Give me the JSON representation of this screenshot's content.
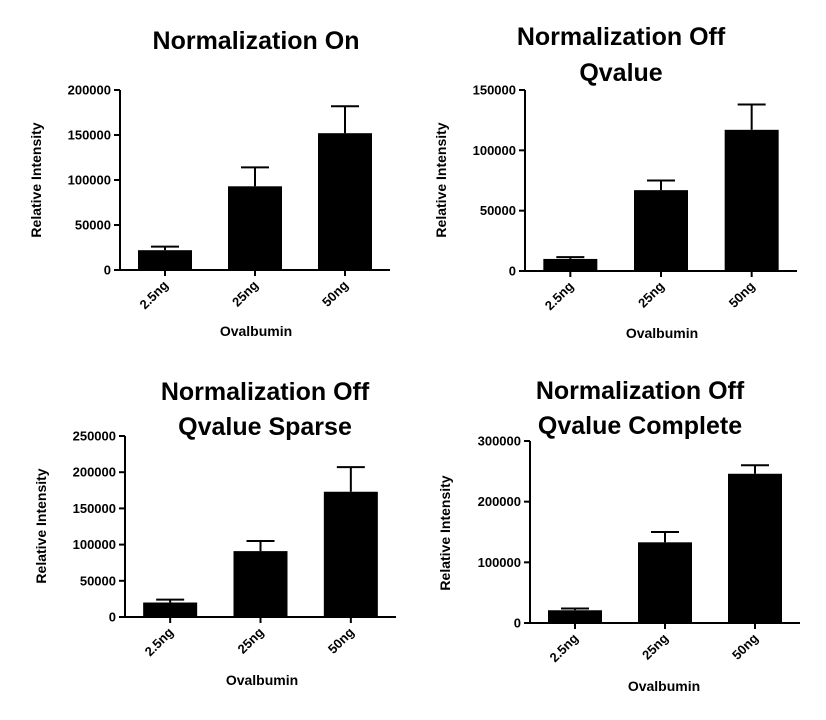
{
  "chart_data": [
    {
      "type": "bar",
      "title_lines": [
        "Normalization On"
      ],
      "categories": [
        "2.5ng",
        "25ng",
        "50ng"
      ],
      "values": [
        22000,
        93000,
        152000
      ],
      "error": [
        4000,
        21000,
        30000
      ],
      "xlabel": "Ovalbumin",
      "ylabel": "Relative Intensity",
      "ylim": [
        0,
        200000
      ],
      "yticks": [
        0,
        50000,
        100000,
        150000,
        200000
      ],
      "ytick_labels": [
        "0",
        "50000",
        "100000",
        "150000",
        "200000"
      ],
      "bar_color": "#000000"
    },
    {
      "type": "bar",
      "title_lines": [
        "Normalization Off",
        "Qvalue"
      ],
      "categories": [
        "2.5ng",
        "25ng",
        "50ng"
      ],
      "values": [
        10000,
        67000,
        117000
      ],
      "error": [
        1500,
        8000,
        21000
      ],
      "xlabel": "Ovalbumin",
      "ylabel": "Relative Intensity",
      "ylim": [
        0,
        150000
      ],
      "yticks": [
        0,
        50000,
        100000,
        150000
      ],
      "ytick_labels": [
        "0",
        "50000",
        "100000",
        "150000"
      ],
      "bar_color": "#000000"
    },
    {
      "type": "bar",
      "title_lines": [
        "Normalization Off",
        "Qvalue Sparse"
      ],
      "categories": [
        "2.5ng",
        "25ng",
        "50ng"
      ],
      "values": [
        20000,
        91000,
        173000
      ],
      "error": [
        4000,
        14000,
        34000
      ],
      "xlabel": "Ovalbumin",
      "ylabel": "Relative Intensity",
      "ylim": [
        0,
        250000
      ],
      "yticks": [
        0,
        50000,
        100000,
        150000,
        200000,
        250000
      ],
      "ytick_labels": [
        "0",
        "50000",
        "100000",
        "150000",
        "200000",
        "250000"
      ],
      "bar_color": "#000000"
    },
    {
      "type": "bar",
      "title_lines": [
        "Normalization Off",
        "Qvalue Complete"
      ],
      "categories": [
        "2.5ng",
        "25ng",
        "50ng"
      ],
      "values": [
        21000,
        133000,
        246000
      ],
      "error": [
        3000,
        17000,
        14000
      ],
      "xlabel": "Ovalbumin",
      "ylabel": "Relative Intensity",
      "ylim": [
        0,
        300000
      ],
      "yticks": [
        0,
        100000,
        200000,
        300000
      ],
      "ytick_labels": [
        "0",
        "100000",
        "200000",
        "300000"
      ],
      "bar_color": "#000000"
    }
  ]
}
